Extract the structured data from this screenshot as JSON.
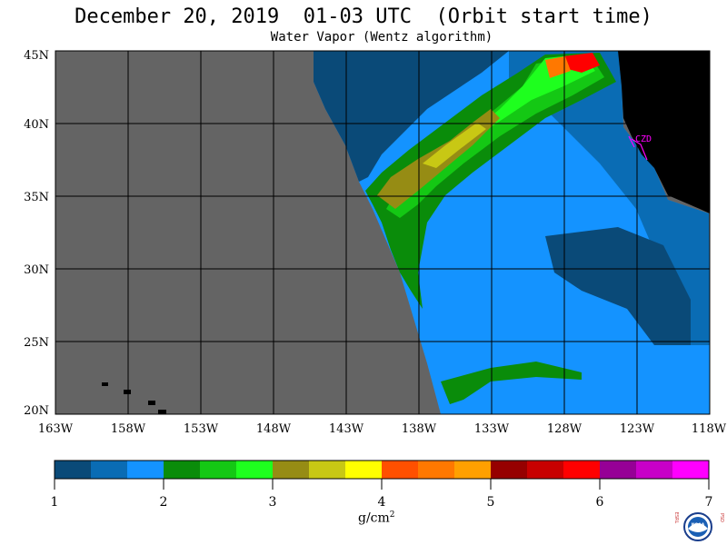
{
  "title": "December 20, 2019  01-03 UTC  (Orbit start time)",
  "subtitle": "Water Vapor (Wentz algorithm)",
  "lat_labels": [
    "45N",
    "40N",
    "35N",
    "30N",
    "25N",
    "20N"
  ],
  "lon_labels": [
    "163W",
    "158W",
    "153W",
    "148W",
    "143W",
    "138W",
    "133W",
    "128W",
    "123W",
    "118W"
  ],
  "station_label": "CZD",
  "colorbar": {
    "colors": [
      "#0a4a78",
      "#0a6cb4",
      "#1493ff",
      "#0a8c0a",
      "#14c814",
      "#1eff1e",
      "#968c14",
      "#c8c814",
      "#ffff00",
      "#ff5000",
      "#ff7800",
      "#ffa000",
      "#960000",
      "#c80000",
      "#ff0000",
      "#960096",
      "#c800c8",
      "#ff00ff"
    ],
    "tick_labels": [
      "1",
      "2",
      "3",
      "4",
      "5",
      "6",
      "7"
    ],
    "units_main": "g/cm",
    "units_sup": "2"
  },
  "colors": {
    "nodata": "#646464",
    "land": "#000000",
    "station": "#ff00ff"
  },
  "logo": {
    "left_letters": "ESRL",
    "right_letters": "PSD",
    "center": "NOAA"
  }
}
